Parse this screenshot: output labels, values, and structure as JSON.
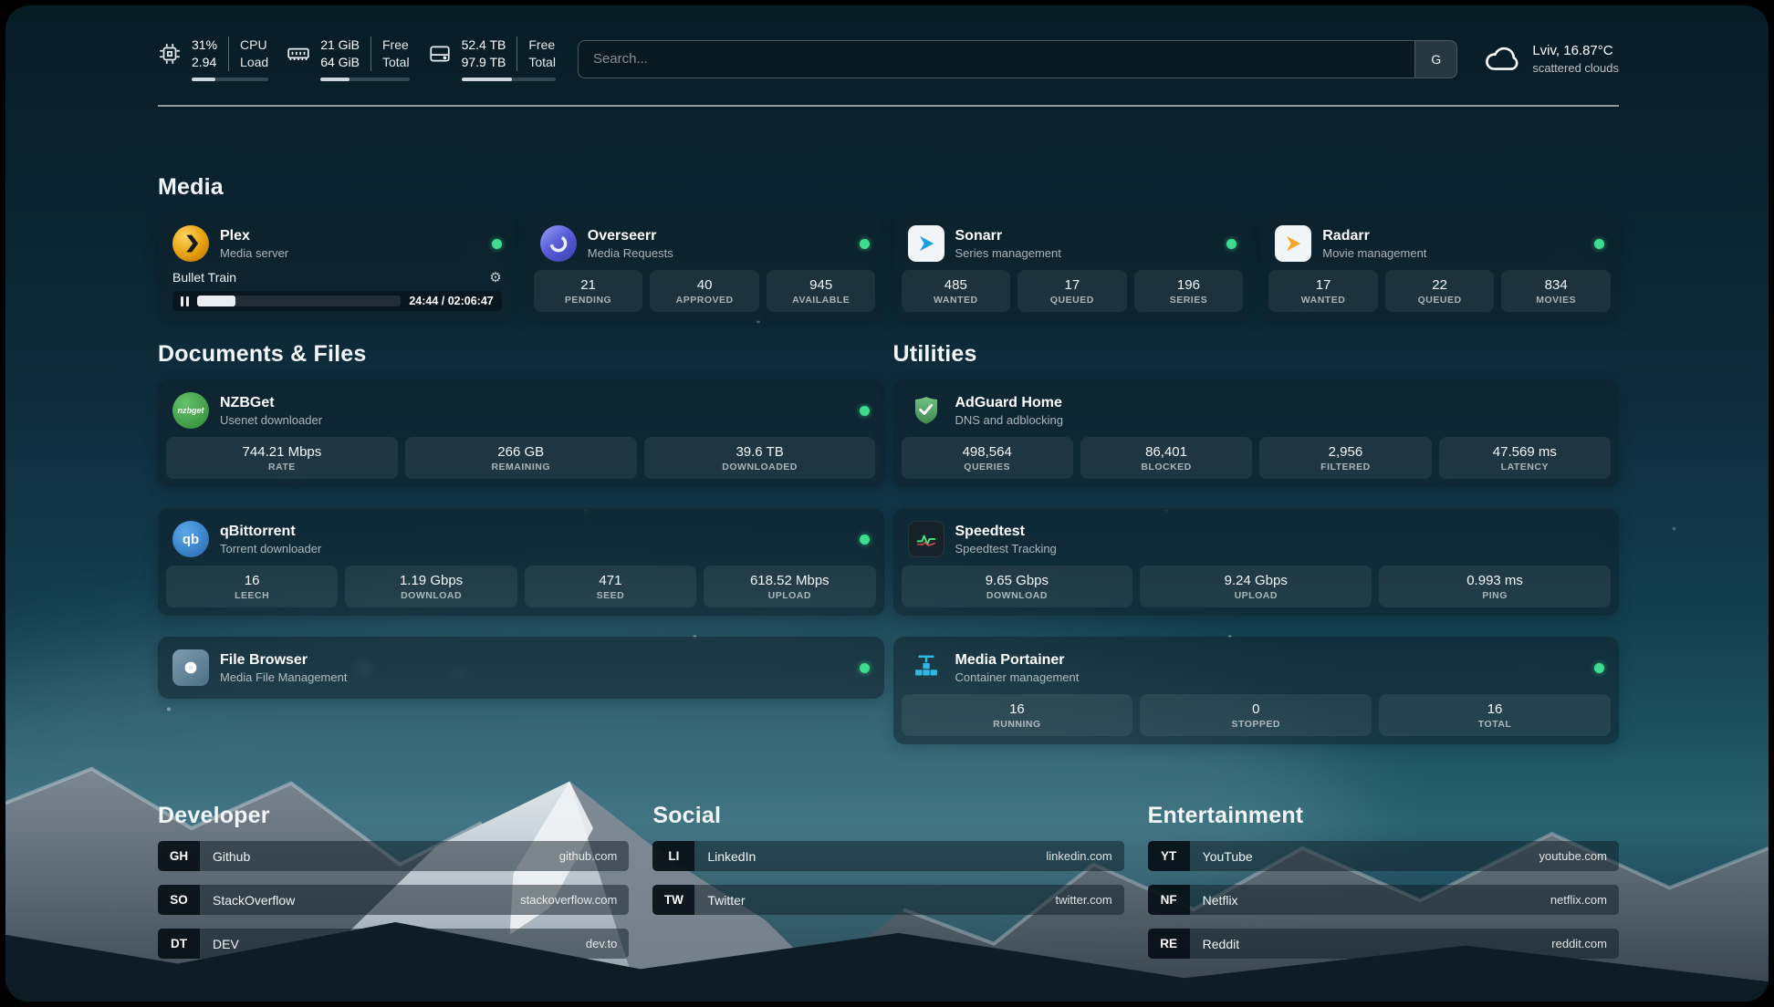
{
  "colors": {
    "status_online": "#3ddc8e"
  },
  "header": {
    "cpu": {
      "value_top": "31%",
      "value_bottom": "2.94",
      "label_top": "CPU",
      "label_bottom": "Load",
      "bar_percent": 31
    },
    "memory": {
      "value_top": "21 GiB",
      "value_bottom": "64 GiB",
      "label_top": "Free",
      "label_bottom": "Total",
      "bar_percent": 33
    },
    "disk": {
      "value_top": "52.4 TB",
      "value_bottom": "97.9 TB",
      "label_top": "Free",
      "label_bottom": "Total",
      "bar_percent": 54
    },
    "search": {
      "placeholder": "Search...",
      "provider_button": "G"
    },
    "weather": {
      "location": "Lviv, 16.87°C",
      "condition": "scattered clouds"
    }
  },
  "media": {
    "title": "Media",
    "plex": {
      "name": "Plex",
      "description": "Media server",
      "now_playing": "Bullet Train",
      "elapsed_total": "24:44 / 02:06:47",
      "progress_percent": 19
    },
    "overseerr": {
      "name": "Overseerr",
      "description": "Media Requests",
      "stats": [
        {
          "value": "21",
          "label": "PENDING"
        },
        {
          "value": "40",
          "label": "APPROVED"
        },
        {
          "value": "945",
          "label": "AVAILABLE"
        }
      ]
    },
    "sonarr": {
      "name": "Sonarr",
      "description": "Series management",
      "stats": [
        {
          "value": "485",
          "label": "WANTED"
        },
        {
          "value": "17",
          "label": "QUEUED"
        },
        {
          "value": "196",
          "label": "SERIES"
        }
      ]
    },
    "radarr": {
      "name": "Radarr",
      "description": "Movie management",
      "stats": [
        {
          "value": "17",
          "label": "WANTED"
        },
        {
          "value": "22",
          "label": "QUEUED"
        },
        {
          "value": "834",
          "label": "MOVIES"
        }
      ]
    }
  },
  "documents": {
    "title": "Documents & Files",
    "nzbget": {
      "name": "NZBGet",
      "description": "Usenet downloader",
      "icon_text": "nzbget",
      "stats": [
        {
          "value": "744.21 Mbps",
          "label": "RATE"
        },
        {
          "value": "266 GB",
          "label": "REMAINING"
        },
        {
          "value": "39.6 TB",
          "label": "DOWNLOADED"
        }
      ]
    },
    "qbittorrent": {
      "name": "qBittorrent",
      "description": "Torrent downloader",
      "icon_text": "qb",
      "stats": [
        {
          "value": "16",
          "label": "LEECH"
        },
        {
          "value": "1.19 Gbps",
          "label": "DOWNLOAD"
        },
        {
          "value": "471",
          "label": "SEED"
        },
        {
          "value": "618.52 Mbps",
          "label": "UPLOAD"
        }
      ]
    },
    "filebrowser": {
      "name": "File Browser",
      "description": "Media File Management"
    }
  },
  "utilities": {
    "title": "Utilities",
    "adguard": {
      "name": "AdGuard Home",
      "description": "DNS and adblocking",
      "stats": [
        {
          "value": "498,564",
          "label": "QUERIES"
        },
        {
          "value": "86,401",
          "label": "BLOCKED"
        },
        {
          "value": "2,956",
          "label": "FILTERED"
        },
        {
          "value": "47.569 ms",
          "label": "LATENCY"
        }
      ]
    },
    "speedtest": {
      "name": "Speedtest",
      "description": "Speedtest Tracking",
      "stats": [
        {
          "value": "9.65 Gbps",
          "label": "DOWNLOAD"
        },
        {
          "value": "9.24 Gbps",
          "label": "UPLOAD"
        },
        {
          "value": "0.993 ms",
          "label": "PING"
        }
      ]
    },
    "portainer": {
      "name": "Media Portainer",
      "description": "Container management",
      "stats": [
        {
          "value": "16",
          "label": "RUNNING"
        },
        {
          "value": "0",
          "label": "STOPPED"
        },
        {
          "value": "16",
          "label": "TOTAL"
        }
      ]
    }
  },
  "bookmarks": {
    "developer": {
      "title": "Developer",
      "items": [
        {
          "abbr": "GH",
          "name": "Github",
          "url": "github.com"
        },
        {
          "abbr": "SO",
          "name": "StackOverflow",
          "url": "stackoverflow.com"
        },
        {
          "abbr": "DT",
          "name": "DEV",
          "url": "dev.to"
        }
      ]
    },
    "social": {
      "title": "Social",
      "items": [
        {
          "abbr": "LI",
          "name": "LinkedIn",
          "url": "linkedin.com"
        },
        {
          "abbr": "TW",
          "name": "Twitter",
          "url": "twitter.com"
        }
      ]
    },
    "entertainment": {
      "title": "Entertainment",
      "items": [
        {
          "abbr": "YT",
          "name": "YouTube",
          "url": "youtube.com"
        },
        {
          "abbr": "NF",
          "name": "Netflix",
          "url": "netflix.com"
        },
        {
          "abbr": "RE",
          "name": "Reddit",
          "url": "reddit.com"
        }
      ]
    }
  }
}
